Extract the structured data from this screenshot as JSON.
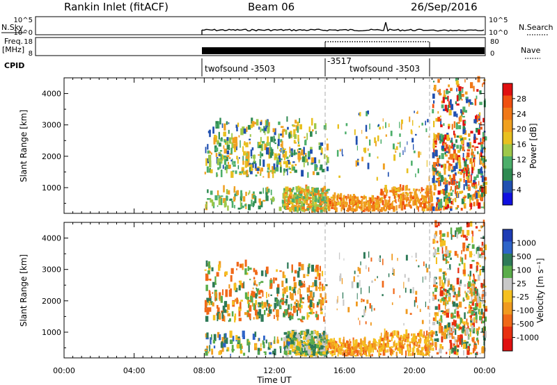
{
  "header": {
    "station": "Rankin Inlet (fitACF)",
    "beam": "Beam 06",
    "date": "26/Sep/2016"
  },
  "panels": {
    "nsky": {
      "label": "N.Sky",
      "ticks": [
        "10^5",
        "10^0"
      ],
      "right_label": "N.Search",
      "right_ticks": [
        "10^5",
        "10^0"
      ]
    },
    "freq": {
      "label_line1": "Freq.",
      "label_line2": "[MHz]",
      "ticks": [
        "18",
        "8"
      ],
      "right_label": "Nave",
      "right_ticks": [
        "80",
        "0"
      ]
    },
    "cpid": {
      "label": "CPID",
      "segments": [
        "twofsound -3503",
        "-3517",
        "twofsound -3503"
      ]
    }
  },
  "colors": {
    "power_scale": [
      "#1010e0",
      "#2050b0",
      "#2e8a52",
      "#4cae6a",
      "#9ec84a",
      "#e8c020",
      "#f0a020",
      "#f07818",
      "#f05010",
      "#e01010"
    ],
    "velocity_scale": [
      "#1e3cb4",
      "#2e64c8",
      "#2e7a58",
      "#5aac4a",
      "#c8c8c8",
      "#f5c020",
      "#f09a20",
      "#f06818",
      "#e83010",
      "#e01010"
    ]
  },
  "chart_data": [
    {
      "type": "heatmap",
      "name": "power",
      "ylabel": "Slant Range [km]",
      "yticks": [
        1000,
        2000,
        3000,
        4000
      ],
      "ylim": [
        180,
        4500
      ],
      "xlim": [
        0,
        24
      ],
      "colorbar_label": "Power [dB]",
      "colorbar_ticks": [
        4,
        8,
        12,
        16,
        20,
        24,
        28
      ],
      "colorbar_range": [
        0,
        30
      ]
    },
    {
      "type": "heatmap",
      "name": "velocity",
      "ylabel": "Slant Range [km]",
      "yticks": [
        1000,
        2000,
        3000,
        4000
      ],
      "ylim": [
        180,
        4500
      ],
      "xlim": [
        0,
        24
      ],
      "colorbar_label": "Velocity [m s⁻¹]",
      "colorbar_ticks": [
        "1000",
        "500",
        "100",
        "25",
        "-25",
        "-100",
        "-500",
        "-1000"
      ]
    }
  ],
  "xaxis": {
    "ticks": [
      "00:00",
      "04:00",
      "08:00",
      "12:00",
      "16:00",
      "20:00",
      "00:00"
    ],
    "label": "Time UT"
  }
}
